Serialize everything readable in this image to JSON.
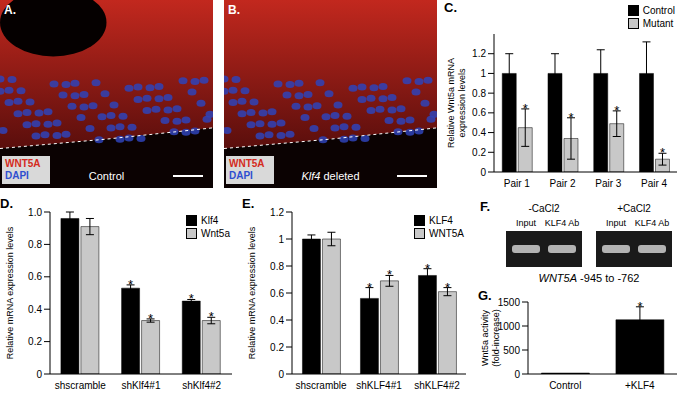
{
  "images": [
    {
      "title": "A.",
      "stains": [
        {
          "name": "WNT5A",
          "color": "#d42a20"
        },
        {
          "name": "DAPI",
          "color": "#2f4fd0"
        }
      ],
      "caption": "Control"
    },
    {
      "title": "B.",
      "stains": [
        {
          "name": "WNT5A",
          "color": "#d42a20"
        },
        {
          "name": "DAPI",
          "color": "#2f4fd0"
        }
      ],
      "caption": "Klf4 deleted"
    }
  ],
  "gel": {
    "title": "F.",
    "groups": [
      {
        "name": "-CaCl2",
        "lanes": [
          "Input",
          "KLF4 Ab"
        ]
      },
      {
        "name": "+CaCl2",
        "lanes": [
          "Input",
          "KLF4 Ab"
        ]
      }
    ],
    "caption": "WNT5A -945 to -762"
  },
  "chart_data": [
    {
      "type": "bar",
      "title": "C.",
      "ylabel": [
        "Relative Wnt5a mRNA",
        "expression levels"
      ],
      "categories": [
        "Pair 1",
        "Pair 2",
        "Pair 3",
        "Pair 4"
      ],
      "series": [
        {
          "name": "Control",
          "color": "#000000",
          "values": [
            1,
            1,
            1,
            1
          ],
          "errors": [
            0.2,
            0.2,
            0.24,
            0.32
          ]
        },
        {
          "name": "Mutant",
          "color": "#c8c8c8",
          "values": [
            0.45,
            0.34,
            0.49,
            0.13
          ],
          "errors": [
            0.19,
            0.21,
            0.13,
            0.06
          ],
          "annotations": [
            "*",
            "*",
            "*",
            "*"
          ]
        }
      ],
      "ylim": [
        0,
        1.4
      ],
      "yticks": [
        0,
        0.2,
        0.4,
        0.6,
        0.8,
        1,
        1.2
      ],
      "legend": "upper right"
    },
    {
      "type": "bar",
      "title": "D.",
      "ylabel": [
        "Relative mRNA expression levels"
      ],
      "categories": [
        "shscramble",
        "shKlf4#1",
        "shKlf4#2"
      ],
      "series": [
        {
          "name": "Klf4",
          "color": "#000000",
          "values": [
            0.96,
            0.53,
            0.45
          ],
          "errors": [
            0.04,
            0.02,
            0.01
          ],
          "annotations": [
            null,
            "*",
            "*"
          ]
        },
        {
          "name": "Wnt5a",
          "color": "#c8c8c8",
          "values": [
            0.91,
            0.33,
            0.33
          ],
          "errors": [
            0.05,
            0.01,
            0.02
          ],
          "annotations": [
            null,
            "*",
            "*"
          ]
        }
      ],
      "ylim": [
        0,
        1
      ],
      "yticks": [
        0,
        0.2,
        0.4,
        0.6,
        0.8,
        {
          "value": 1,
          "label": "1.0"
        }
      ],
      "legend": "upper right"
    },
    {
      "type": "bar",
      "title": "E.",
      "ylabel": [
        "Relative mRNA expression levels"
      ],
      "categories": [
        "shscramble",
        "shKLF4#1",
        "shKLF4#2"
      ],
      "series": [
        {
          "name": "KLF4",
          "color": "#000000",
          "values": [
            1,
            0.56,
            0.73
          ],
          "errors": [
            0.03,
            0.08,
            0.05
          ],
          "annotations": [
            null,
            "*",
            "*"
          ]
        },
        {
          "name": "WNT5A",
          "color": "#c8c8c8",
          "values": [
            1,
            0.69,
            0.61
          ],
          "errors": [
            0.05,
            0.04,
            0.03
          ],
          "annotations": [
            null,
            "*",
            "*"
          ]
        }
      ],
      "ylim": [
        0,
        1.2
      ],
      "yticks": [
        0,
        0.2,
        0.4,
        0.6,
        0.8,
        1,
        1.2
      ],
      "legend": "upper right"
    },
    {
      "type": "bar",
      "title": "G.",
      "ylabel": [
        "Wnt5a activity",
        "(fold-increase)"
      ],
      "categories": [
        "Control",
        "+KLF4"
      ],
      "values": [
        20,
        1130
      ],
      "errors": [
        0,
        270
      ],
      "annotations": [
        null,
        "*"
      ],
      "color": "#000000",
      "ylim": [
        0,
        1500
      ],
      "yticks": [
        0,
        500,
        1000,
        1500
      ]
    }
  ]
}
